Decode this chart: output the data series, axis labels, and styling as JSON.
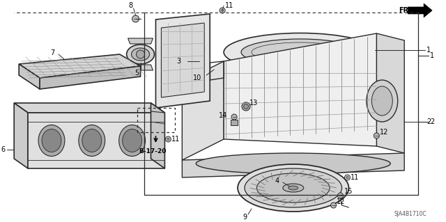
{
  "bg_color": "#ffffff",
  "fig_width": 6.4,
  "fig_height": 3.19,
  "dpi": 100,
  "diagram_code": "SJA4B1710C",
  "line_color": "#2a2a2a",
  "gray": "#888888",
  "light_gray": "#cccccc",
  "dark_gray": "#444444"
}
